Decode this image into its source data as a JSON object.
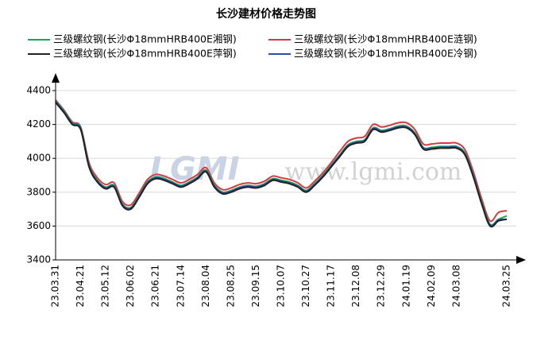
{
  "chart_data": {
    "type": "line",
    "title": "长沙建材价格走势图",
    "watermark": [
      "LGMI",
      "www.lgmi.com"
    ],
    "categories": [
      "23.03.31",
      null,
      null,
      "23.04.21",
      null,
      null,
      "23.05.12",
      null,
      null,
      "23.06.02",
      null,
      null,
      "23.06.21",
      null,
      null,
      "23.07.14",
      null,
      null,
      "23.08.04",
      null,
      null,
      "23.08.25",
      null,
      null,
      "23.09.15",
      null,
      null,
      "23.10.07",
      null,
      null,
      "23.10.27",
      null,
      null,
      "23.11.17",
      null,
      null,
      "23.12.08",
      null,
      null,
      "23.12.29",
      null,
      null,
      "24.01.19",
      null,
      null,
      "24.02.09",
      null,
      null,
      "24.03.08",
      null,
      null,
      null,
      null,
      null,
      "24.03.25"
    ],
    "series": [
      {
        "name": "三级螺纹钢(长沙Φ18mmHRB400E湘钢)",
        "color": "#1aa35a",
        "values": [
          4340,
          4280,
          4210,
          4180,
          3960,
          3870,
          3830,
          3840,
          3730,
          3710,
          3780,
          3860,
          3890,
          3880,
          3860,
          3840,
          3860,
          3890,
          3930,
          3840,
          3800,
          3810,
          3830,
          3840,
          3835,
          3850,
          3880,
          3870,
          3860,
          3840,
          3810,
          3850,
          3900,
          3960,
          4020,
          4080,
          4100,
          4110,
          4180,
          4165,
          4175,
          4190,
          4190,
          4150,
          4065,
          4065,
          4070,
          4070,
          4070,
          4030,
          3900,
          3740,
          3610,
          3640,
          3660
        ]
      },
      {
        "name": "三级螺纹钢(长沙Φ18mmHRB400E涟钢)",
        "color": "#d23c3c",
        "values": [
          4345,
          4285,
          4215,
          4185,
          3975,
          3885,
          3845,
          3855,
          3745,
          3725,
          3795,
          3875,
          3905,
          3895,
          3875,
          3855,
          3875,
          3905,
          3945,
          3855,
          3815,
          3825,
          3845,
          3855,
          3850,
          3865,
          3895,
          3885,
          3875,
          3855,
          3825,
          3865,
          3915,
          3975,
          4040,
          4100,
          4120,
          4130,
          4200,
          4185,
          4195,
          4210,
          4210,
          4170,
          4085,
          4085,
          4090,
          4090,
          4090,
          4050,
          3920,
          3760,
          3630,
          3680,
          3690
        ]
      },
      {
        "name": "三级螺纹钢(长沙Φ18mmHRB400E萍钢)",
        "color": "#222222",
        "values": [
          4330,
          4270,
          4200,
          4170,
          3950,
          3860,
          3820,
          3830,
          3720,
          3700,
          3770,
          3850,
          3880,
          3870,
          3850,
          3830,
          3850,
          3880,
          3920,
          3830,
          3790,
          3800,
          3820,
          3830,
          3825,
          3840,
          3870,
          3860,
          3850,
          3830,
          3800,
          3840,
          3890,
          3950,
          4010,
          4070,
          4090,
          4100,
          4170,
          4155,
          4165,
          4180,
          4180,
          4140,
          4055,
          4055,
          4060,
          4060,
          4060,
          4020,
          3890,
          3730,
          3600,
          3630,
          3640
        ]
      },
      {
        "name": "三级螺纹钢(长沙Φ18mmHRB400E冷钢)",
        "color": "#2b4fa8",
        "values": [
          4335,
          4275,
          4205,
          4175,
          3955,
          3865,
          3825,
          3835,
          3725,
          3705,
          3775,
          3855,
          3885,
          3875,
          3855,
          3835,
          3855,
          3885,
          3925,
          3835,
          3795,
          3805,
          3825,
          3835,
          3830,
          3845,
          3875,
          3865,
          3855,
          3835,
          3805,
          3845,
          3895,
          3955,
          4015,
          4075,
          4095,
          4105,
          4175,
          4160,
          4170,
          4185,
          4185,
          4145,
          4060,
          4060,
          4065,
          4065,
          4065,
          4025,
          3895,
          3735,
          3605,
          3635,
          3640
        ]
      }
    ],
    "ylim": [
      3400,
      4400
    ],
    "yticks": [
      3400,
      3600,
      3800,
      4000,
      4200,
      4400
    ],
    "grid": true
  }
}
